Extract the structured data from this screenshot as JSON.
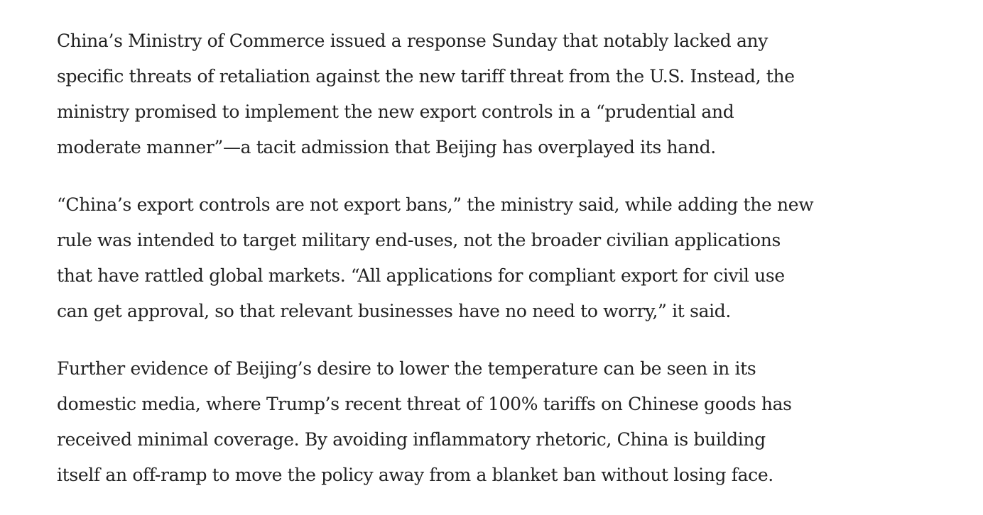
{
  "article": {
    "paragraphs": [
      {
        "lines": [
          "China’s Ministry of Commerce issued a response Sunday that notably lacked any",
          "specific threats of retaliation against the new tariff threat from the U.S. Instead, the",
          "ministry promised to implement the new export controls in a “prudential and",
          "moderate manner”—a tacit admission that Beijing has overplayed its hand."
        ]
      },
      {
        "lines": [
          "“China’s export controls are not export bans,” the ministry said, while adding the new",
          "rule was intended to target military end-uses, not the broader civilian applications",
          "that have rattled global markets. “All applications for compliant export for civil use",
          "can get approval, so that relevant businesses have no need to worry,” it said."
        ]
      },
      {
        "lines": [
          "Further evidence of Beijing’s desire to lower the temperature can be seen in its",
          "domestic media, where Trump’s recent threat of 100% tariffs on Chinese goods has",
          "received minimal coverage. By avoiding inflammatory rhetoric, China is building",
          "itself an off-ramp to move the policy away from a blanket ban without losing face."
        ]
      }
    ]
  }
}
